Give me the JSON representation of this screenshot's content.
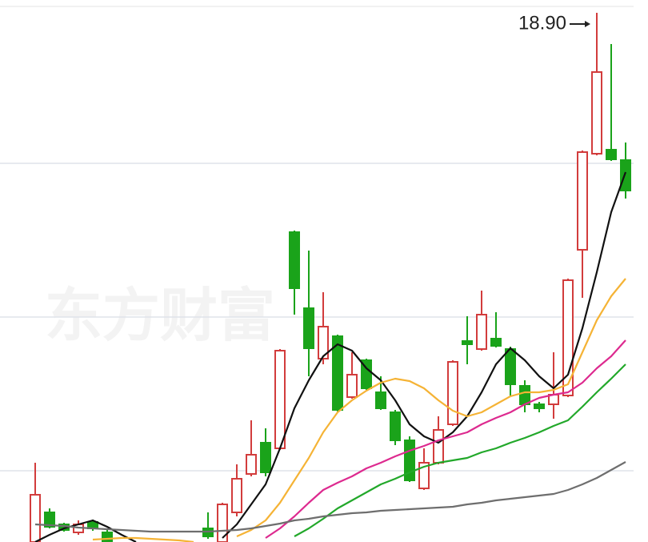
{
  "chart_data": {
    "type": "candlestick",
    "watermark": "东方财富",
    "annotation": "18.90",
    "ylim": [
      12.29,
      19.06
    ],
    "grid_lines": [
      17.02,
      15.1,
      13.18
    ],
    "up_color": "#d23c3c",
    "down_color": "#1aa31a",
    "open": [
      12.29,
      12.66,
      12.51,
      12.41,
      12.54,
      12.41,
      null,
      null,
      null,
      null,
      null,
      null,
      12.46,
      12.29,
      12.66,
      13.14,
      13.53,
      13.46,
      16.16,
      15.21,
      14.58,
      14.86,
      14.1,
      14.56,
      14.16,
      13.91,
      13.56,
      12.96,
      13.28,
      13.76,
      14.8,
      14.7,
      14.83,
      14.7,
      14.24,
      14.01,
      14.01,
      14.12,
      15.94,
      17.14,
      17.19,
      17.06
    ],
    "high": [
      13.28,
      12.71,
      12.53,
      12.56,
      12.57,
      12.44,
      null,
      null,
      null,
      null,
      null,
      null,
      12.66,
      12.78,
      13.26,
      13.81,
      13.71,
      14.7,
      16.18,
      15.93,
      15.41,
      14.88,
      14.66,
      14.58,
      14.36,
      13.94,
      13.61,
      13.46,
      13.86,
      14.56,
      15.11,
      15.43,
      15.16,
      14.73,
      14.31,
      14.04,
      14.66,
      15.58,
      17.18,
      18.9,
      18.51,
      17.28
    ],
    "low": [
      12.29,
      12.46,
      12.42,
      12.38,
      12.43,
      12.29,
      null,
      null,
      null,
      null,
      null,
      null,
      12.33,
      12.29,
      12.61,
      13.11,
      13.11,
      13.44,
      15.13,
      14.36,
      14.51,
      13.92,
      14.08,
      14.19,
      13.94,
      13.5,
      13.04,
      12.94,
      13.26,
      13.74,
      14.51,
      14.68,
      14.72,
      14.11,
      13.91,
      13.91,
      13.83,
      14.1,
      15.34,
      17.12,
      17.05,
      16.58
    ],
    "close": [
      12.88,
      12.48,
      12.44,
      12.51,
      12.46,
      12.29,
      null,
      null,
      null,
      null,
      null,
      null,
      12.36,
      12.76,
      13.08,
      13.38,
      13.16,
      14.68,
      15.46,
      14.71,
      14.98,
      13.94,
      14.38,
      14.21,
      13.96,
      13.56,
      13.06,
      13.28,
      13.69,
      14.54,
      14.76,
      15.13,
      14.74,
      14.26,
      14.01,
      13.96,
      14.13,
      15.56,
      17.16,
      18.16,
      17.07,
      16.68
    ],
    "lines": [
      {
        "color": "#111111",
        "values": [
          12.29,
          12.38,
          12.46,
          12.51,
          12.56,
          12.48,
          12.38,
          12.29,
          null,
          null,
          null,
          null,
          null,
          12.34,
          12.51,
          12.76,
          13.01,
          13.46,
          13.96,
          14.31,
          14.61,
          14.76,
          14.68,
          14.46,
          14.31,
          14.06,
          13.76,
          13.61,
          13.53,
          13.66,
          13.86,
          14.16,
          14.51,
          14.71,
          14.56,
          14.36,
          14.21,
          14.38,
          14.96,
          15.66,
          16.41,
          16.91
        ]
      },
      {
        "color": "#f5b335",
        "values": [
          null,
          null,
          null,
          null,
          12.32,
          12.33,
          12.34,
          12.34,
          12.33,
          12.32,
          12.31,
          12.29,
          null,
          null,
          12.36,
          12.44,
          12.56,
          12.78,
          13.06,
          13.34,
          13.66,
          13.91,
          14.06,
          14.18,
          14.28,
          14.33,
          14.3,
          14.21,
          14.06,
          13.93,
          13.86,
          13.91,
          14.01,
          14.11,
          14.16,
          14.16,
          14.19,
          14.26,
          14.66,
          15.06,
          15.36,
          15.58
        ]
      },
      {
        "color": "#dd2a8f",
        "values": [
          null,
          null,
          null,
          null,
          null,
          null,
          null,
          null,
          null,
          null,
          null,
          null,
          null,
          null,
          null,
          null,
          12.34,
          12.46,
          12.61,
          12.78,
          12.94,
          13.03,
          13.11,
          13.21,
          13.28,
          13.36,
          13.43,
          13.49,
          13.56,
          13.61,
          13.66,
          13.76,
          13.84,
          13.91,
          14.01,
          14.09,
          14.13,
          14.16,
          14.28,
          14.46,
          14.61,
          14.81
        ]
      },
      {
        "color": "#22a82a",
        "values": [
          null,
          null,
          null,
          null,
          null,
          null,
          null,
          null,
          null,
          null,
          null,
          null,
          null,
          null,
          null,
          null,
          null,
          null,
          12.36,
          12.46,
          12.58,
          12.71,
          12.81,
          12.91,
          13.01,
          13.08,
          13.16,
          13.23,
          13.28,
          13.31,
          13.34,
          13.41,
          13.46,
          13.53,
          13.59,
          13.66,
          13.74,
          13.81,
          13.98,
          14.16,
          14.33,
          14.51
        ]
      },
      {
        "color": "#6e6e6e",
        "values": [
          12.51,
          12.5,
          12.49,
          12.47,
          12.46,
          12.45,
          12.44,
          12.43,
          12.42,
          12.42,
          12.42,
          12.42,
          12.42,
          12.43,
          12.44,
          12.46,
          12.49,
          12.52,
          12.56,
          12.58,
          12.61,
          12.63,
          12.65,
          12.66,
          12.68,
          12.69,
          12.7,
          12.71,
          12.72,
          12.73,
          12.76,
          12.78,
          12.81,
          12.83,
          12.85,
          12.87,
          12.89,
          12.94,
          13.01,
          13.09,
          13.19,
          13.29
        ]
      }
    ]
  }
}
